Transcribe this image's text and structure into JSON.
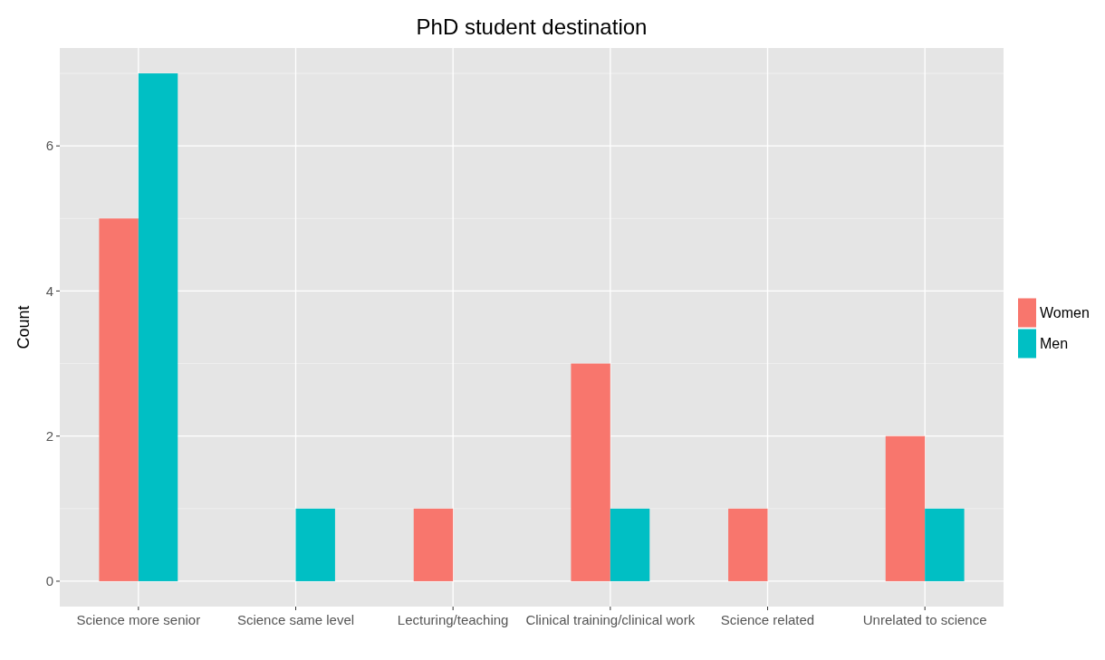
{
  "chart_data": {
    "type": "bar",
    "title": "PhD student destination",
    "ylabel": "Count",
    "categories": [
      "Science more senior",
      "Science same level",
      "Lecturing/teaching",
      "Clinical training/clinical work",
      "Science related",
      "Unrelated to science"
    ],
    "series": [
      {
        "name": "Women",
        "color": "#f8766d",
        "values": [
          5,
          null,
          1,
          3,
          1,
          2
        ]
      },
      {
        "name": "Men",
        "color": "#00bfc4",
        "values": [
          7,
          1,
          null,
          1,
          null,
          1
        ]
      }
    ],
    "ylim": [
      -0.35,
      7.35
    ],
    "yticks": [
      0,
      2,
      4,
      6
    ],
    "grid": true,
    "legend": "right"
  }
}
